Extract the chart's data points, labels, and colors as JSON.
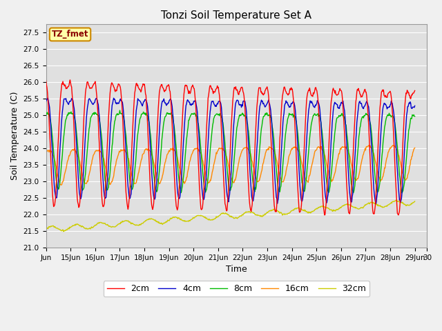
{
  "title": "Tonzi Soil Temperature Set A",
  "xlabel": "Time",
  "ylabel": "Soil Temperature (C)",
  "xlim": [
    0,
    15.5
  ],
  "ylim": [
    21.0,
    27.75
  ],
  "yticks": [
    21.0,
    21.5,
    22.0,
    22.5,
    23.0,
    23.5,
    24.0,
    24.5,
    25.0,
    25.5,
    26.0,
    26.5,
    27.0,
    27.5
  ],
  "xtick_labels": [
    "Jun",
    "15Jun",
    "16Jun",
    "17Jun",
    "18Jun",
    "19Jun",
    "20Jun",
    "21Jun",
    "22Jun",
    "23Jun",
    "24Jun",
    "25Jun",
    "26Jun",
    "27Jun",
    "28Jun",
    "29Jun",
    "30"
  ],
  "xtick_positions": [
    0,
    1,
    2,
    3,
    4,
    5,
    6,
    7,
    8,
    9,
    10,
    11,
    12,
    13,
    14,
    15,
    15.5
  ],
  "series_colors": [
    "#ff0000",
    "#0000cc",
    "#00bb00",
    "#ff8800",
    "#cccc00"
  ],
  "series_labels": [
    "2cm",
    "4cm",
    "8cm",
    "16cm",
    "32cm"
  ],
  "legend_text": "TZ_fmet",
  "bg_color": "#e0e0e0",
  "grid_color": "#ffffff",
  "annotation_box_facecolor": "#ffffaa",
  "annotation_box_edgecolor": "#cc8800",
  "fig_bg": "#f0f0f0"
}
